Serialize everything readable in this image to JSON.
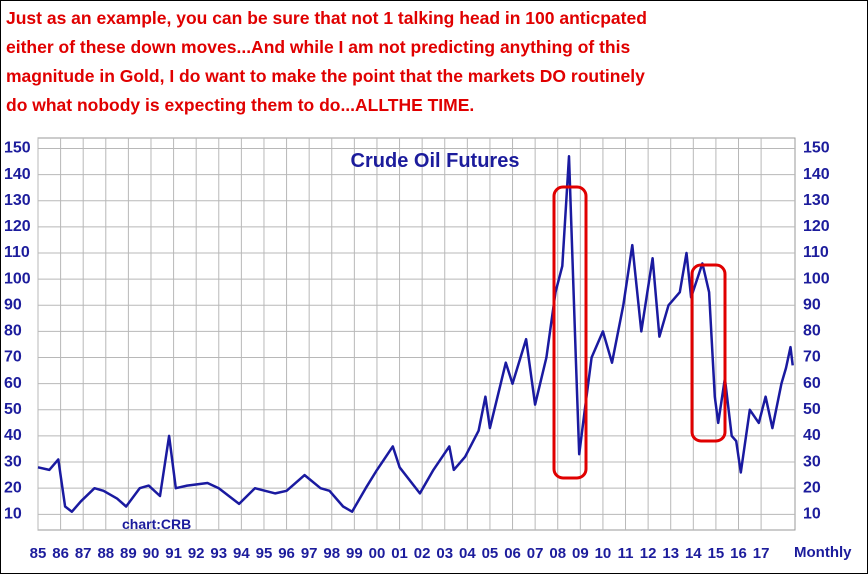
{
  "header": {
    "lines": [
      "Just as an example, you can be sure that not 1 talking head in 100 anticpated",
      "either of these down moves...And while I am not predicting anything of this",
      "magnitude in Gold, I do want to make the point that the markets DO routinely",
      "do what nobody is expecting them to do...ALLTHE TIME."
    ]
  },
  "chart_data": {
    "type": "line",
    "title": "Crude Oil Futures",
    "source": "chart:CRB",
    "frequency": "Monthly",
    "color": "#1a1aa0",
    "grid": true,
    "x": [
      1985.0,
      1985.5,
      1985.9,
      1986.2,
      1986.5,
      1986.9,
      1987.5,
      1987.9,
      1988.5,
      1988.9,
      1989.5,
      1989.9,
      1990.4,
      1990.8,
      1991.1,
      1991.6,
      1992.5,
      1993.0,
      1993.9,
      1994.6,
      1995.5,
      1996.0,
      1996.8,
      1997.5,
      1997.9,
      1998.5,
      1998.9,
      1999.5,
      2000.0,
      2000.7,
      2001.0,
      2001.9,
      2002.5,
      2003.2,
      2003.4,
      2003.9,
      2004.5,
      2004.8,
      2005.0,
      2005.7,
      2006.0,
      2006.6,
      2007.0,
      2007.5,
      2007.9,
      2008.2,
      2008.5,
      2008.8,
      2008.95,
      2009.2,
      2009.5,
      2010.0,
      2010.4,
      2010.9,
      2011.3,
      2011.7,
      2012.2,
      2012.5,
      2012.9,
      2013.4,
      2013.7,
      2013.9,
      2014.4,
      2014.7,
      2014.95,
      2015.1,
      2015.4,
      2015.7,
      2015.9,
      2016.1,
      2016.5,
      2016.9,
      2017.2,
      2017.5,
      2017.9,
      2018.1,
      2018.3,
      2018.4
    ],
    "values": [
      28,
      27,
      31,
      13,
      11,
      15,
      20,
      19,
      16,
      13,
      20,
      21,
      17,
      40,
      20,
      21,
      22,
      20,
      14,
      20,
      18,
      19,
      25,
      20,
      19,
      13,
      11,
      20,
      27,
      36,
      28,
      18,
      27,
      36,
      27,
      32,
      42,
      55,
      43,
      68,
      60,
      77,
      52,
      70,
      95,
      105,
      147,
      70,
      33,
      50,
      70,
      80,
      68,
      90,
      113,
      80,
      108,
      78,
      90,
      95,
      110,
      93,
      106,
      95,
      55,
      45,
      62,
      40,
      38,
      26,
      50,
      45,
      55,
      43,
      60,
      66,
      74,
      67
    ],
    "xlim": [
      1985,
      2018.5
    ],
    "xticks": [
      {
        "value": 1985,
        "label": "85"
      },
      {
        "value": 1986,
        "label": "86"
      },
      {
        "value": 1987,
        "label": "87"
      },
      {
        "value": 1988,
        "label": "88"
      },
      {
        "value": 1989,
        "label": "89"
      },
      {
        "value": 1990,
        "label": "90"
      },
      {
        "value": 1991,
        "label": "91"
      },
      {
        "value": 1992,
        "label": "92"
      },
      {
        "value": 1993,
        "label": "93"
      },
      {
        "value": 1994,
        "label": "94"
      },
      {
        "value": 1995,
        "label": "95"
      },
      {
        "value": 1996,
        "label": "96"
      },
      {
        "value": 1997,
        "label": "97"
      },
      {
        "value": 1998,
        "label": "98"
      },
      {
        "value": 1999,
        "label": "99"
      },
      {
        "value": 2000,
        "label": "00"
      },
      {
        "value": 2001,
        "label": "01"
      },
      {
        "value": 2002,
        "label": "02"
      },
      {
        "value": 2003,
        "label": "03"
      },
      {
        "value": 2004,
        "label": "04"
      },
      {
        "value": 2005,
        "label": "05"
      },
      {
        "value": 2006,
        "label": "06"
      },
      {
        "value": 2007,
        "label": "07"
      },
      {
        "value": 2008,
        "label": "08"
      },
      {
        "value": 2009,
        "label": "09"
      },
      {
        "value": 2010,
        "label": "10"
      },
      {
        "value": 2011,
        "label": "11"
      },
      {
        "value": 2012,
        "label": "12"
      },
      {
        "value": 2013,
        "label": "13"
      },
      {
        "value": 2014,
        "label": "14"
      },
      {
        "value": 2015,
        "label": "15"
      },
      {
        "value": 2016,
        "label": "16"
      },
      {
        "value": 2017,
        "label": "17"
      }
    ],
    "ylim": [
      4,
      154
    ],
    "yticks": [
      10,
      20,
      30,
      40,
      50,
      60,
      70,
      80,
      90,
      100,
      110,
      120,
      130,
      140,
      150
    ]
  }
}
